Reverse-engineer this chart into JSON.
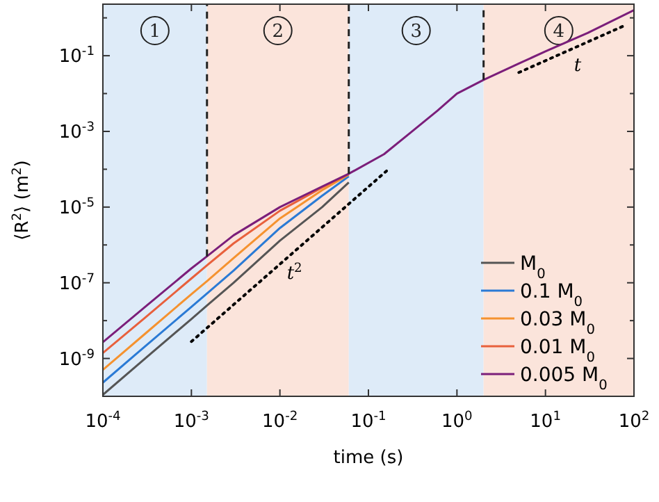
{
  "chart_data": {
    "type": "line",
    "xlabel": "time (s)",
    "ylabel": "⟨R$^{2}$⟩ (m$^{2}$)",
    "log": "xy",
    "xlim": [
      0.0001,
      100
    ],
    "ylim": [
      1e-10,
      2.3
    ],
    "xticks": [
      {
        "value": 0.0001,
        "label": "10$^{-4}$"
      },
      {
        "value": 0.001,
        "label": "10$^{-3}$"
      },
      {
        "value": 0.01,
        "label": "10$^{-2}$"
      },
      {
        "value": 0.1,
        "label": "10$^{-1}$"
      },
      {
        "value": 1,
        "label": "10$^{0}$"
      },
      {
        "value": 10,
        "label": "10$^{1}$"
      },
      {
        "value": 100,
        "label": "10$^{2}$"
      }
    ],
    "yticks": [
      {
        "value": 1e-10,
        "label": null
      },
      {
        "value": 1e-09,
        "label": "10$^{-9}$"
      },
      {
        "value": 1e-08,
        "label": null
      },
      {
        "value": 1e-07,
        "label": "10$^{-7}$"
      },
      {
        "value": 1e-06,
        "label": null
      },
      {
        "value": 1e-05,
        "label": "10$^{-5}$"
      },
      {
        "value": 0.0001,
        "label": null
      },
      {
        "value": 0.001,
        "label": "10$^{-3}$"
      },
      {
        "value": 0.01,
        "label": null
      },
      {
        "value": 0.1,
        "label": "10$^{-1}$"
      },
      {
        "value": 1,
        "label": null
      }
    ],
    "x": [
      0.0001,
      0.0003,
      0.001,
      0.0015,
      0.003,
      0.01,
      0.03,
      0.06,
      0.15,
      0.3,
      0.6,
      1,
      2,
      5,
      10,
      30,
      100
    ],
    "grid": false,
    "legend": "bottom right",
    "line_style": "solid",
    "marker": "none",
    "series": [
      {
        "name": "M$_{0}$",
        "color": "#555555",
        "values": [
          1.1e-10,
          1e-09,
          1.1e-08,
          2.5e-08,
          1e-07,
          1.3e-06,
          1e-05,
          4.5e-05,
          null,
          null,
          null,
          null,
          null,
          null,
          null,
          null,
          null
        ]
      },
      {
        "name": "0.1 M$_{0}$",
        "color": "#2a7ad5",
        "values": [
          2.3e-10,
          2.1e-09,
          2.3e-08,
          5.2e-08,
          2.1e-07,
          2.8e-06,
          2e-05,
          6.5e-05,
          null,
          null,
          null,
          null,
          null,
          null,
          null,
          null,
          null
        ]
      },
      {
        "name": "0.03 M$_{0}$",
        "color": "#f5922f",
        "values": [
          5e-10,
          4.5e-09,
          5e-08,
          1.1e-07,
          4.5e-07,
          5e-06,
          2.8e-05,
          7.2e-05,
          null,
          null,
          null,
          null,
          null,
          null,
          null,
          null,
          null
        ]
      },
      {
        "name": "0.01 M$_{0}$",
        "color": "#e8603c",
        "values": [
          1.4e-09,
          1.2e-08,
          1.3e-07,
          2.9e-07,
          1.1e-06,
          8e-06,
          3.3e-05,
          7.5e-05,
          null,
          null,
          null,
          null,
          null,
          null,
          null,
          null,
          null
        ]
      },
      {
        "name": "0.005 M$_{0}$",
        "color": "#7b1e7a",
        "values": [
          2.7e-09,
          2.3e-08,
          2.4e-07,
          5e-07,
          1.8e-06,
          1e-05,
          3.5e-05,
          7.6e-05,
          0.00025,
          0.00093,
          0.0035,
          0.01,
          0.023,
          0.062,
          0.13,
          0.4,
          1.6
        ]
      },
      {
        "type": "line",
        "color": "#000000",
        "line_style": "dotted",
        "x": [
          0.001,
          0.16
        ],
        "values": [
          2.8e-09,
          9e-05
        ]
      },
      {
        "type": "line",
        "color": "#000000",
        "line_style": "dotted",
        "x": [
          5,
          80
        ],
        "values": [
          0.036,
          0.64
        ]
      },
      {
        "type": "line",
        "color": "#222222",
        "line_style": "dashed",
        "x": [
          0.0015,
          0.0015
        ],
        "values": [
          5e-07,
          2.3
        ]
      },
      {
        "type": "line",
        "color": "#222222",
        "line_style": "dashed",
        "x": [
          0.06,
          0.06
        ],
        "values": [
          7.6e-05,
          2.3
        ]
      },
      {
        "type": "line",
        "color": "#222222",
        "line_style": "dashed",
        "x": [
          2,
          2
        ],
        "values": [
          0.023,
          2.3
        ]
      }
    ],
    "bands": [
      {
        "axis": "x",
        "from": 0.0001,
        "to": 0.0015,
        "label": "1",
        "color": "#deebf8"
      },
      {
        "axis": "x",
        "from": 0.0015,
        "to": 0.06,
        "label": "2",
        "color": "#fbe4db"
      },
      {
        "axis": "x",
        "from": 0.06,
        "to": 2,
        "label": "3",
        "color": "#deebf8"
      },
      {
        "axis": "x",
        "from": 2,
        "to": 100,
        "label": "4",
        "color": "#fbe4db"
      }
    ],
    "annotations": [
      "t$^{2}$",
      "t"
    ]
  }
}
